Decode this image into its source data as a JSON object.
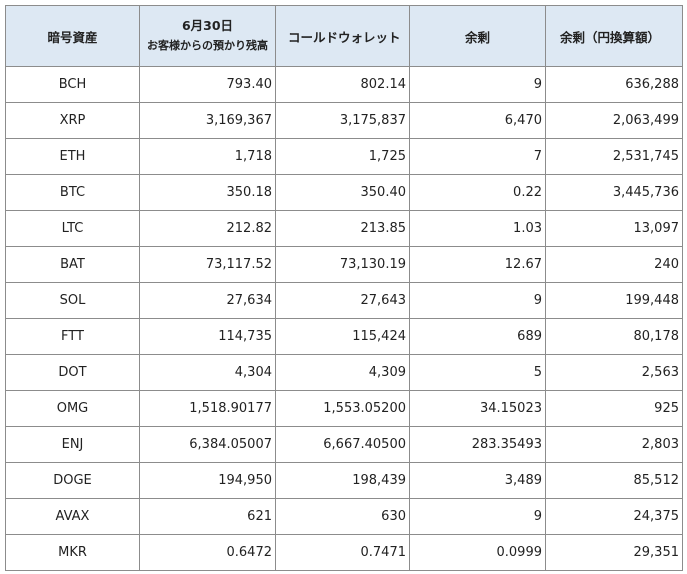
{
  "headers": {
    "asset": "暗号資産",
    "deposit_line1": "6月30日",
    "deposit_line2": "お客様からの預かり残高",
    "cold_wallet": "コールドウォレット",
    "surplus": "余剰",
    "surplus_jpy": "余剰（円換算額）"
  },
  "rows": [
    {
      "symbol": "BCH",
      "deposit": "793.40",
      "cold": "802.14",
      "surplus": "9",
      "jpy": "636,288"
    },
    {
      "symbol": "XRP",
      "deposit": "3,169,367",
      "cold": "3,175,837",
      "surplus": "6,470",
      "jpy": "2,063,499"
    },
    {
      "symbol": "ETH",
      "deposit": "1,718",
      "cold": "1,725",
      "surplus": "7",
      "jpy": "2,531,745"
    },
    {
      "symbol": "BTC",
      "deposit": "350.18",
      "cold": "350.40",
      "surplus": "0.22",
      "jpy": "3,445,736"
    },
    {
      "symbol": "LTC",
      "deposit": "212.82",
      "cold": "213.85",
      "surplus": "1.03",
      "jpy": "13,097"
    },
    {
      "symbol": "BAT",
      "deposit": "73,117.52",
      "cold": "73,130.19",
      "surplus": "12.67",
      "jpy": "240"
    },
    {
      "symbol": "SOL",
      "deposit": "27,634",
      "cold": "27,643",
      "surplus": "9",
      "jpy": "199,448"
    },
    {
      "symbol": "FTT",
      "deposit": "114,735",
      "cold": "115,424",
      "surplus": "689",
      "jpy": "80,178"
    },
    {
      "symbol": "DOT",
      "deposit": "4,304",
      "cold": "4,309",
      "surplus": "5",
      "jpy": "2,563"
    },
    {
      "symbol": "OMG",
      "deposit": "1,518.90177",
      "cold": "1,553.05200",
      "surplus": "34.15023",
      "jpy": "925"
    },
    {
      "symbol": "ENJ",
      "deposit": "6,384.05007",
      "cold": "6,667.40500",
      "surplus": "283.35493",
      "jpy": "2,803"
    },
    {
      "symbol": "DOGE",
      "deposit": "194,950",
      "cold": "198,439",
      "surplus": "3,489",
      "jpy": "85,512"
    },
    {
      "symbol": "AVAX",
      "deposit": "621",
      "cold": "630",
      "surplus": "9",
      "jpy": "24,375"
    },
    {
      "symbol": "MKR",
      "deposit": "0.6472",
      "cold": "0.7471",
      "surplus": "0.0999",
      "jpy": "29,351"
    }
  ],
  "colors": {
    "header_bg": "#dde8f3",
    "border": "#8c8c8c"
  }
}
